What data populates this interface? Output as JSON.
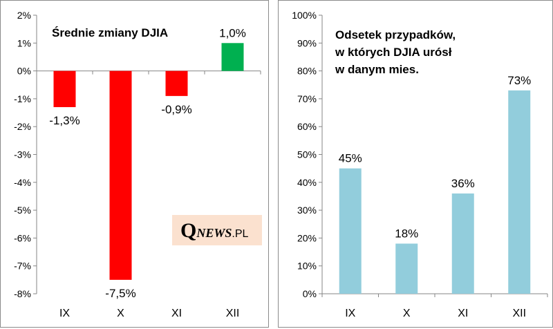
{
  "chart_data": [
    {
      "type": "bar",
      "title": "Średnie zmiany DJIA",
      "categories": [
        "IX",
        "X",
        "XI",
        "XII"
      ],
      "values": [
        -1.3,
        -7.5,
        -0.9,
        1.0
      ],
      "data_labels": [
        "-1,3%",
        "-7,5%",
        "-0,9%",
        "1,0%"
      ],
      "bar_colors": [
        "#ff0000",
        "#ff0000",
        "#ff0000",
        "#00b050"
      ],
      "ylim": [
        -8,
        2
      ],
      "yticks": [
        2,
        1,
        0,
        -1,
        -2,
        -3,
        -4,
        -5,
        -6,
        -7,
        -8
      ],
      "ytick_labels": [
        "2%",
        "1%",
        "0%",
        "-1%",
        "-2%",
        "-3%",
        "-4%",
        "-5%",
        "-6%",
        "-7%",
        "-8%"
      ],
      "grid": false
    },
    {
      "type": "bar",
      "title": [
        "Odsetek przypadków,",
        "w których DJIA urósł",
        "w danym mies."
      ],
      "categories": [
        "IX",
        "X",
        "XI",
        "XII"
      ],
      "values": [
        45,
        18,
        36,
        73
      ],
      "data_labels": [
        "45%",
        "18%",
        "36%",
        "73%"
      ],
      "bar_color": "#92cddc",
      "ylim": [
        0,
        100
      ],
      "yticks": [
        100,
        90,
        80,
        70,
        60,
        50,
        40,
        30,
        20,
        10,
        0
      ],
      "ytick_labels": [
        "100%",
        "90%",
        "80%",
        "70%",
        "60%",
        "50%",
        "40%",
        "30%",
        "20%",
        "10%",
        "0%"
      ],
      "grid": false
    }
  ],
  "logo": {
    "q": "Q",
    "news": "NEWS",
    "pl": ".PL"
  },
  "colors": {
    "axis": "#868686",
    "frame": "#8a8a8a",
    "logo_bg": "#fbe1cf"
  }
}
